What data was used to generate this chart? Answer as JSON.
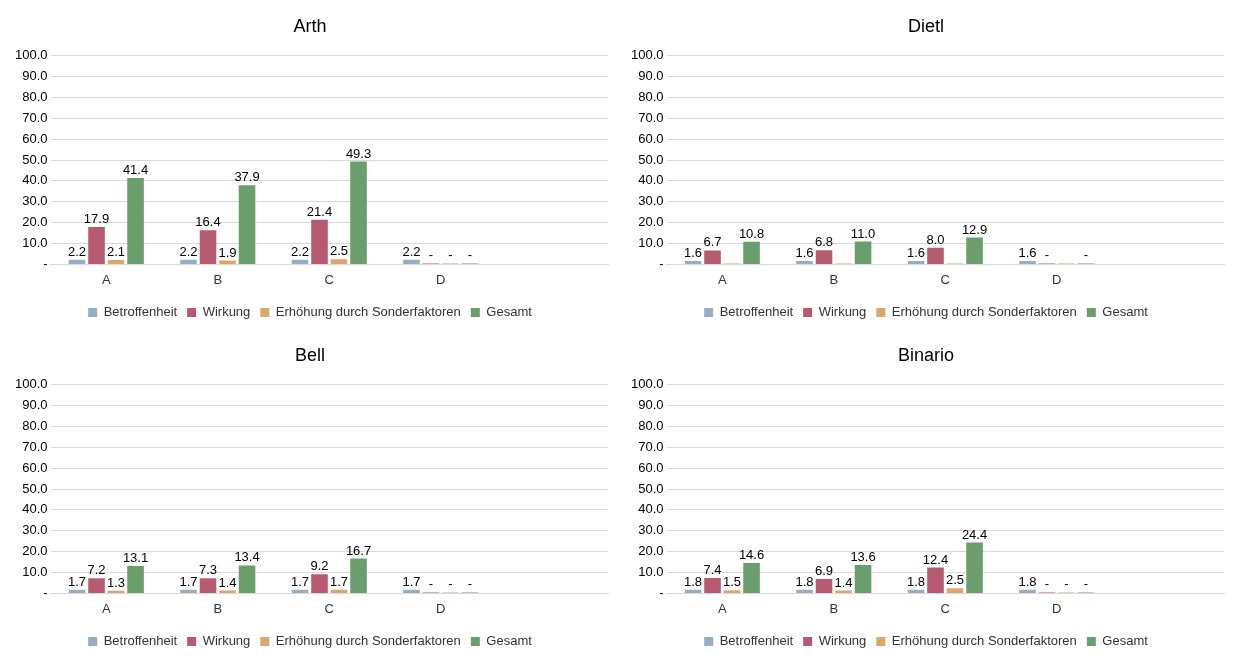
{
  "chart_data": [
    {
      "type": "bar",
      "title": "Arth",
      "categories": [
        "A",
        "B",
        "C",
        "D",
        null
      ],
      "ylim": [
        0,
        100
      ],
      "yticks": [
        {
          "value": 0,
          "label": "-"
        },
        {
          "value": 10,
          "label": "10.0"
        },
        {
          "value": 20,
          "label": "20.0"
        },
        {
          "value": 30,
          "label": "30.0"
        },
        {
          "value": 40,
          "label": "40.0"
        },
        {
          "value": 50,
          "label": "50.0"
        },
        {
          "value": 60,
          "label": "60.0"
        },
        {
          "value": 70,
          "label": "70.0"
        },
        {
          "value": 80,
          "label": "80.0"
        },
        {
          "value": 90,
          "label": "90.0"
        },
        {
          "value": 100,
          "label": "100.0"
        }
      ],
      "grid": "y",
      "legend": "bottom",
      "series": [
        {
          "name": "Betroffenheit",
          "color": "#95aec5",
          "values": [
            2.2,
            2.2,
            2.2,
            2.2,
            null
          ],
          "value_labels": [
            "2.2",
            "2.2",
            "2.2",
            "2.2",
            null
          ]
        },
        {
          "name": "Wirkung",
          "color": "#b65a72",
          "values": [
            17.9,
            16.4,
            21.4,
            0,
            null
          ],
          "value_labels": [
            "17.9",
            "16.4",
            "21.4",
            "-",
            null
          ]
        },
        {
          "name": "Erhöhung durch Sonderfaktoren",
          "color": "#d8a86c",
          "values": [
            2.1,
            1.9,
            2.5,
            0,
            null
          ],
          "value_labels": [
            "2.1",
            "1.9",
            "2.5",
            "-",
            null
          ]
        },
        {
          "name": "Gesamt",
          "color": "#6a9e6c",
          "values": [
            41.4,
            37.9,
            49.3,
            0,
            null
          ],
          "value_labels": [
            "41.4",
            "37.9",
            "49.3",
            "-",
            null
          ]
        }
      ]
    },
    {
      "type": "bar",
      "title": "Dietl",
      "categories": [
        "A",
        "B",
        "C",
        "D",
        null
      ],
      "ylim": [
        0,
        100
      ],
      "yticks": [
        {
          "value": 0,
          "label": "-"
        },
        {
          "value": 10,
          "label": "10.0"
        },
        {
          "value": 20,
          "label": "20.0"
        },
        {
          "value": 30,
          "label": "30.0"
        },
        {
          "value": 40,
          "label": "40.0"
        },
        {
          "value": 50,
          "label": "50.0"
        },
        {
          "value": 60,
          "label": "60.0"
        },
        {
          "value": 70,
          "label": "70.0"
        },
        {
          "value": 80,
          "label": "80.0"
        },
        {
          "value": 90,
          "label": "90.0"
        },
        {
          "value": 100,
          "label": "100.0"
        }
      ],
      "grid": "y",
      "legend": "bottom",
      "series": [
        {
          "name": "Betroffenheit",
          "color": "#95aec5",
          "values": [
            1.6,
            1.6,
            1.6,
            1.6,
            null
          ],
          "value_labels": [
            "1.6",
            "1.6",
            "1.6",
            "1.6",
            null
          ]
        },
        {
          "name": "Wirkung",
          "color": "#b65a72",
          "values": [
            6.7,
            6.8,
            8.0,
            0,
            null
          ],
          "value_labels": [
            "6.7",
            "6.8",
            "8.0",
            "-",
            null
          ]
        },
        {
          "name": "Erhöhung durch Sonderfaktoren",
          "color": "#d8a86c",
          "values": [
            0,
            0,
            0,
            0,
            null
          ],
          "value_labels": [
            null,
            null,
            null,
            null,
            null
          ]
        },
        {
          "name": "Gesamt",
          "color": "#6a9e6c",
          "values": [
            10.8,
            11.0,
            12.9,
            0,
            null
          ],
          "value_labels": [
            "10.8",
            "11.0",
            "12.9",
            "-",
            null
          ]
        }
      ]
    },
    {
      "type": "bar",
      "title": "Bell",
      "categories": [
        "A",
        "B",
        "C",
        "D",
        null
      ],
      "ylim": [
        0,
        100
      ],
      "yticks": [
        {
          "value": 0,
          "label": "-"
        },
        {
          "value": 10,
          "label": "10.0"
        },
        {
          "value": 20,
          "label": "20.0"
        },
        {
          "value": 30,
          "label": "30.0"
        },
        {
          "value": 40,
          "label": "40.0"
        },
        {
          "value": 50,
          "label": "50.0"
        },
        {
          "value": 60,
          "label": "60.0"
        },
        {
          "value": 70,
          "label": "70.0"
        },
        {
          "value": 80,
          "label": "80.0"
        },
        {
          "value": 90,
          "label": "90.0"
        },
        {
          "value": 100,
          "label": "100.0"
        }
      ],
      "grid": "y",
      "legend": "bottom",
      "series": [
        {
          "name": "Betroffenheit",
          "color": "#95aec5",
          "values": [
            1.7,
            1.7,
            1.7,
            1.7,
            null
          ],
          "value_labels": [
            "1.7",
            "1.7",
            "1.7",
            "1.7",
            null
          ]
        },
        {
          "name": "Wirkung",
          "color": "#b65a72",
          "values": [
            7.2,
            7.3,
            9.2,
            0,
            null
          ],
          "value_labels": [
            "7.2",
            "7.3",
            "9.2",
            "-",
            null
          ]
        },
        {
          "name": "Erhöhung durch Sonderfaktoren",
          "color": "#d8a86c",
          "values": [
            1.3,
            1.4,
            1.7,
            0,
            null
          ],
          "value_labels": [
            "1.3",
            "1.4",
            "1.7",
            "-",
            null
          ]
        },
        {
          "name": "Gesamt",
          "color": "#6a9e6c",
          "values": [
            13.1,
            13.4,
            16.7,
            0,
            null
          ],
          "value_labels": [
            "13.1",
            "13.4",
            "16.7",
            "-",
            null
          ]
        }
      ]
    },
    {
      "type": "bar",
      "title": "Binario",
      "categories": [
        "A",
        "B",
        "C",
        "D",
        null
      ],
      "ylim": [
        0,
        100
      ],
      "yticks": [
        {
          "value": 0,
          "label": "-"
        },
        {
          "value": 10,
          "label": "10.0"
        },
        {
          "value": 20,
          "label": "20.0"
        },
        {
          "value": 30,
          "label": "30.0"
        },
        {
          "value": 40,
          "label": "40.0"
        },
        {
          "value": 50,
          "label": "50.0"
        },
        {
          "value": 60,
          "label": "60.0"
        },
        {
          "value": 70,
          "label": "70.0"
        },
        {
          "value": 80,
          "label": "80.0"
        },
        {
          "value": 90,
          "label": "90.0"
        },
        {
          "value": 100,
          "label": "100.0"
        }
      ],
      "grid": "y",
      "legend": "bottom",
      "series": [
        {
          "name": "Betroffenheit",
          "color": "#95aec5",
          "values": [
            1.8,
            1.8,
            1.8,
            1.8,
            null
          ],
          "value_labels": [
            "1.8",
            "1.8",
            "1.8",
            "1.8",
            null
          ]
        },
        {
          "name": "Wirkung",
          "color": "#b65a72",
          "values": [
            7.4,
            6.9,
            12.4,
            0,
            null
          ],
          "value_labels": [
            "7.4",
            "6.9",
            "12.4",
            "-",
            null
          ]
        },
        {
          "name": "Erhöhung durch Sonderfaktoren",
          "color": "#d8a86c",
          "values": [
            1.5,
            1.4,
            2.5,
            0,
            null
          ],
          "value_labels": [
            "1.5",
            "1.4",
            "2.5",
            "-",
            null
          ]
        },
        {
          "name": "Gesamt",
          "color": "#6a9e6c",
          "values": [
            14.6,
            13.6,
            24.4,
            0,
            null
          ],
          "value_labels": [
            "14.6",
            "13.6",
            "24.4",
            "-",
            null
          ]
        }
      ]
    }
  ]
}
